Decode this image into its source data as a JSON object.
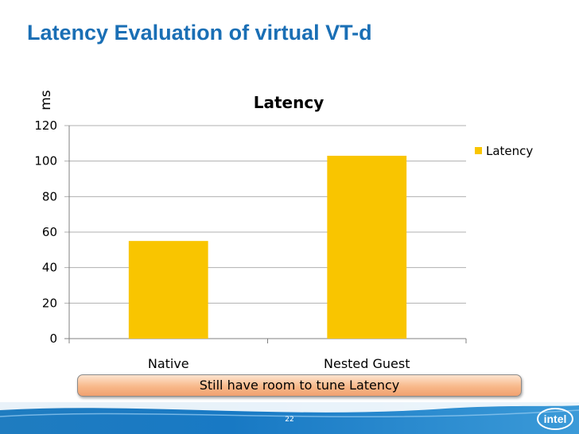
{
  "slide": {
    "title": "Latency Evaluation of virtual VT-d",
    "callout": "Still have room to tune Latency",
    "page_number": "22",
    "logo_text": "intel"
  },
  "colors": {
    "title": "#1a6fb5",
    "bar": "#f9c500",
    "footer": "#1f7cc0"
  },
  "chart_data": {
    "type": "bar",
    "title": "Latency",
    "ylabel": "ms",
    "xlabel": "",
    "categories": [
      "Native",
      "Nested Guest"
    ],
    "series": [
      {
        "name": "Latency",
        "values": [
          55,
          103
        ]
      }
    ],
    "ylim": [
      0,
      120
    ],
    "yticks": [
      0,
      20,
      40,
      60,
      80,
      100,
      120
    ],
    "grid": true,
    "legend_position": "right"
  }
}
